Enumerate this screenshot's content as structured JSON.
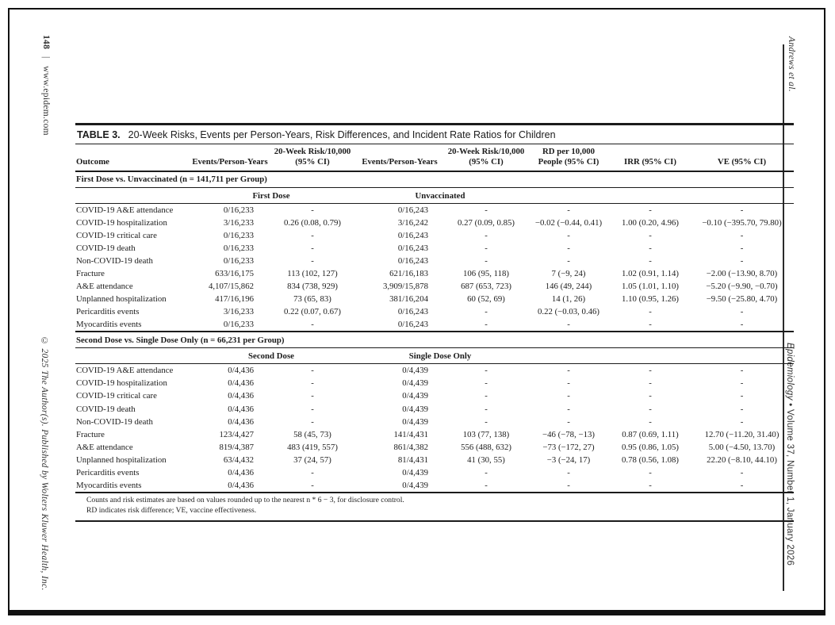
{
  "margins": {
    "page_number": "148",
    "separator": "|",
    "site": "www.epidem.com",
    "copyright": "© 2025 The Author(s). Published by Wolters Kluwer Health, Inc.",
    "running_author": "Andrews et al.",
    "journal": "Epidemiology",
    "bullet": "•",
    "issue": "Volume 37, Number 1, January 2026"
  },
  "table": {
    "label": "TABLE 3.",
    "title": "20-Week Risks, Events per Person-Years, Risk Differences, and Incident Rate Ratios for Children",
    "columns": [
      "Outcome",
      "Events/Person-Years",
      "20-Week Risk/10,000\n(95% CI)",
      "Events/Person-Years",
      "20-Week Risk/10,000\n(95% CI)",
      "RD per 10,000\nPeople (95% CI)",
      "IRR (95% CI)",
      "VE (95% CI)"
    ],
    "sections": [
      {
        "heading": "First Dose vs. Unvaccinated (n = 141,711 per Group)",
        "group_left": "First Dose",
        "group_right": "Unvaccinated",
        "rows": [
          [
            "COVID-19 A&E attendance",
            "0/16,233",
            "-",
            "0/16,243",
            "-",
            "-",
            "-",
            "-"
          ],
          [
            "COVID-19 hospitalization",
            "3/16,233",
            "0.26 (0.08, 0.79)",
            "3/16,242",
            "0.27 (0.09, 0.85)",
            "−0.02 (−0.44, 0.41)",
            "1.00 (0.20, 4.96)",
            "−0.10 (−395.70, 79.80)"
          ],
          [
            "COVID-19 critical care",
            "0/16,233",
            "-",
            "0/16,243",
            "-",
            "-",
            "-",
            "-"
          ],
          [
            "COVID-19 death",
            "0/16,233",
            "-",
            "0/16,243",
            "-",
            "-",
            "-",
            "-"
          ],
          [
            "Non-COVID-19 death",
            "0/16,233",
            "-",
            "0/16,243",
            "-",
            "-",
            "-",
            "-"
          ],
          [
            "Fracture",
            "633/16,175",
            "113 (102, 127)",
            "621/16,183",
            "106 (95, 118)",
            "7 (−9, 24)",
            "1.02 (0.91, 1.14)",
            "−2.00 (−13.90, 8.70)"
          ],
          [
            "A&E attendance",
            "4,107/15,862",
            "834 (738, 929)",
            "3,909/15,878",
            "687 (653, 723)",
            "146 (49, 244)",
            "1.05 (1.01, 1.10)",
            "−5.20 (−9.90, −0.70)"
          ],
          [
            "Unplanned hospitalization",
            "417/16,196",
            "73 (65, 83)",
            "381/16,204",
            "60 (52, 69)",
            "14 (1, 26)",
            "1.10 (0.95, 1.26)",
            "−9.50 (−25.80, 4.70)"
          ],
          [
            "Pericarditis events",
            "3/16,233",
            "0.22 (0.07, 0.67)",
            "0/16,243",
            "-",
            "0.22 (−0.03, 0.46)",
            "-",
            "-"
          ],
          [
            "Myocarditis events",
            "0/16,233",
            "-",
            "0/16,243",
            "-",
            "-",
            "-",
            "-"
          ]
        ]
      },
      {
        "heading": "Second Dose vs. Single Dose Only (n = 66,231 per Group)",
        "group_left": "Second Dose",
        "group_right": "Single Dose Only",
        "rows": [
          [
            "COVID-19 A&E attendance",
            "0/4,436",
            "-",
            "0/4,439",
            "-",
            "-",
            "-",
            "-"
          ],
          [
            "COVID-19 hospitalization",
            "0/4,436",
            "-",
            "0/4,439",
            "-",
            "-",
            "-",
            "-"
          ],
          [
            "COVID-19 critical care",
            "0/4,436",
            "-",
            "0/4,439",
            "-",
            "-",
            "-",
            "-"
          ],
          [
            "COVID-19 death",
            "0/4,436",
            "-",
            "0/4,439",
            "-",
            "-",
            "-",
            "-"
          ],
          [
            "Non-COVID-19 death",
            "0/4,436",
            "-",
            "0/4,439",
            "-",
            "-",
            "-",
            "-"
          ],
          [
            "Fracture",
            "123/4,427",
            "58 (45, 73)",
            "141/4,431",
            "103 (77, 138)",
            "−46 (−78, −13)",
            "0.87 (0.69, 1.11)",
            "12.70 (−11.20, 31.40)"
          ],
          [
            "A&E attendance",
            "819/4,387",
            "483 (419, 557)",
            "861/4,382",
            "556 (488, 632)",
            "−73 (−172, 27)",
            "0.95 (0.86, 1.05)",
            "5.00 (−4.50, 13.70)"
          ],
          [
            "Unplanned hospitalization",
            "63/4,432",
            "37 (24, 57)",
            "81/4,431",
            "41 (30, 55)",
            "−3 (−24, 17)",
            "0.78 (0.56, 1.08)",
            "22.20 (−8.10, 44.10)"
          ],
          [
            "Pericarditis events",
            "0/4,436",
            "-",
            "0/4,439",
            "-",
            "-",
            "-",
            "-"
          ],
          [
            "Myocarditis events",
            "0/4,436",
            "-",
            "0/4,439",
            "-",
            "-",
            "-",
            "-"
          ]
        ]
      }
    ],
    "footnotes": [
      "Counts and risk estimates are based on values rounded up to the nearest n * 6 − 3, for disclosure control.",
      "RD indicates risk difference; VE, vaccine effectiveness."
    ]
  }
}
